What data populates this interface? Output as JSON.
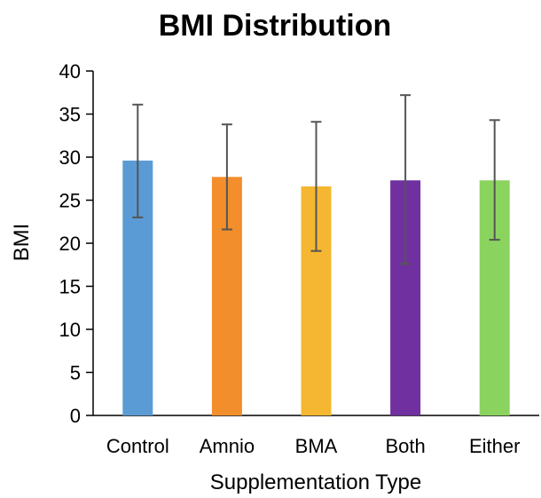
{
  "chart_data": {
    "type": "bar",
    "title": "BMI Distribution",
    "xlabel": "Supplementation Type",
    "ylabel": "BMI",
    "categories": [
      "Control",
      "Amnio",
      "BMA",
      "Both",
      "Either"
    ],
    "values": [
      29.6,
      27.7,
      26.6,
      27.3,
      27.3
    ],
    "error_low": [
      23.0,
      21.6,
      19.1,
      17.6,
      20.4
    ],
    "error_high": [
      36.1,
      33.8,
      34.1,
      37.2,
      34.3
    ],
    "colors": [
      "#5b9bd5",
      "#f28e2b",
      "#f5b731",
      "#7030a0",
      "#8bd35f"
    ],
    "ylim": [
      0,
      40
    ],
    "yticks": [
      0,
      5,
      10,
      15,
      20,
      25,
      30,
      35,
      40
    ],
    "ytick_labels": [
      "0",
      "5",
      "10",
      "15",
      "20",
      "25",
      "30",
      "35",
      "40"
    ],
    "grid": false,
    "legend": "none"
  }
}
